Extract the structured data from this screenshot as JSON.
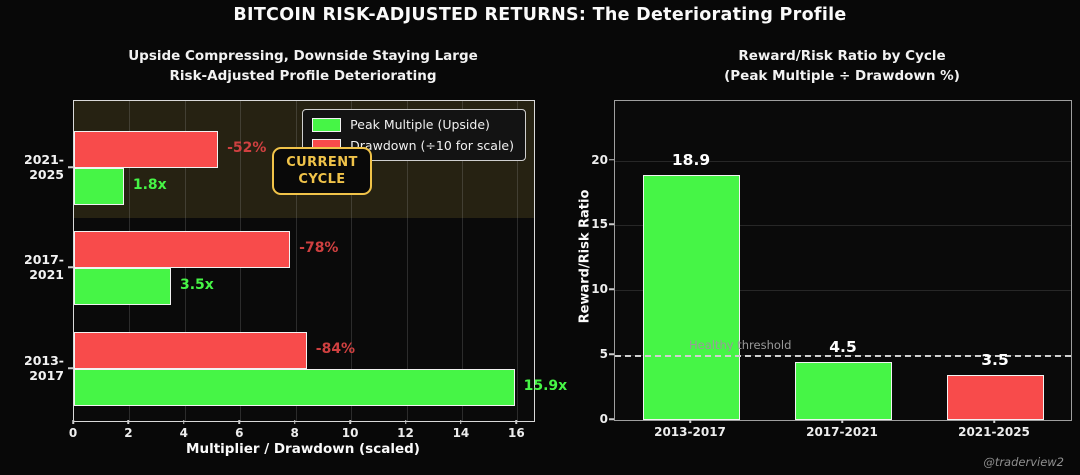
{
  "page": {
    "title": "BITCOIN RISK-ADJUSTED RETURNS: The Deteriorating Profile",
    "credit": "@traderview2"
  },
  "colors": {
    "background": "#080808",
    "green": "#46f546",
    "red": "#f84b4b",
    "red_label": "#cf4040",
    "gold": "#f0c349",
    "highlight_band": "rgba(200,175,70,0.15)",
    "threshold_line": "#d0d0d0",
    "grey_text": "#9a9a9a"
  },
  "chart_data": [
    {
      "type": "bar",
      "orientation": "horizontal",
      "title": "Upside Compressing, Downside Staying Large\nRisk-Adjusted Profile Deteriorating",
      "xlabel": "Multiplier / Drawdown (scaled)",
      "categories": [
        "2021-2025",
        "2017-2021",
        "2013-2017"
      ],
      "series": [
        {
          "name": "Peak Multiple (Upside)",
          "color_key": "green",
          "values": [
            1.8,
            3.5,
            15.9
          ],
          "bar_labels": [
            "1.8x",
            "3.5x",
            "15.9x"
          ]
        },
        {
          "name": "Drawdown (÷10 for scale)",
          "color_key": "red",
          "values": [
            5.2,
            7.8,
            8.4
          ],
          "bar_labels": [
            "-52%",
            "-78%",
            "-84%"
          ]
        }
      ],
      "xlim": [
        0,
        16.6
      ],
      "xticks": [
        0,
        2,
        4,
        6,
        8,
        10,
        12,
        14,
        16
      ],
      "grid": "vertical",
      "legend_position": "upper right",
      "annotation": "CURRENT CYCLE",
      "highlighted_category": "2021-2025"
    },
    {
      "type": "bar",
      "orientation": "vertical",
      "title": "Reward/Risk Ratio by Cycle\n(Peak Multiple ÷ Drawdown %)",
      "ylabel": "Reward/Risk Ratio",
      "categories": [
        "2013-2017",
        "2017-2021",
        "2021-2025"
      ],
      "values": [
        18.9,
        4.5,
        3.5
      ],
      "bar_labels": [
        "18.9",
        "4.5",
        "3.5"
      ],
      "bar_color_keys": [
        "green",
        "green",
        "red"
      ],
      "ylim": [
        0,
        24.6
      ],
      "yticks": [
        0,
        5,
        10,
        15,
        20
      ],
      "grid": "horizontal",
      "threshold": {
        "value": 5,
        "label": "Healthy threshold"
      }
    }
  ]
}
